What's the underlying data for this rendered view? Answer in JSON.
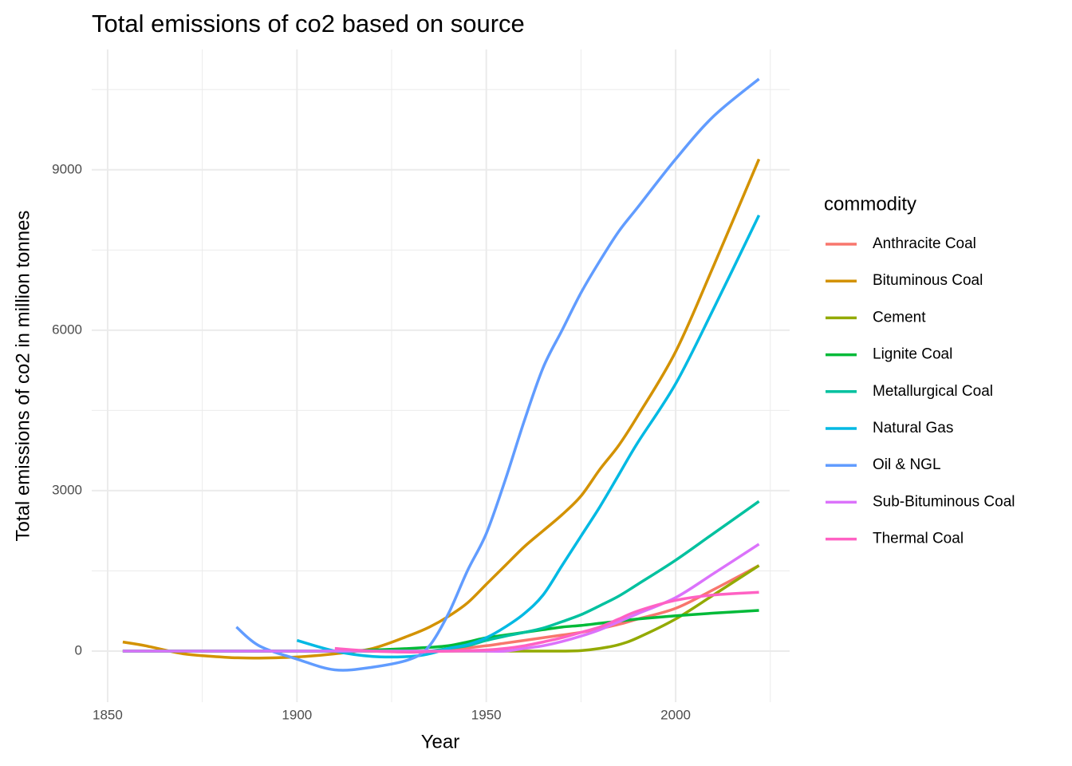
{
  "chart_data": {
    "type": "line",
    "title": "Total emissions of co2 based on source",
    "x_label": "Year",
    "y_label": "Total emissions of co2 in million tonnes",
    "legend_title": "commodity",
    "legend_position": "right",
    "grid": true,
    "x": [
      1854,
      1860,
      1870,
      1880,
      1884,
      1890,
      1900,
      1910,
      1920,
      1930,
      1935,
      1940,
      1945,
      1950,
      1955,
      1960,
      1965,
      1970,
      1975,
      1980,
      1985,
      1990,
      2000,
      2010,
      2022
    ],
    "xlim": [
      1845.8,
      2030.1
    ],
    "xticks": [
      1850,
      1900,
      1950,
      2000
    ],
    "x_minor_ticks": [
      1875,
      1925,
      1975,
      2025
    ],
    "ylim": [
      -955,
      11250
    ],
    "yticks": [
      0,
      3000,
      6000,
      9000
    ],
    "y_minor_ticks": [
      1500,
      4500,
      7500,
      10500
    ],
    "series": [
      {
        "name": "Anthracite Coal",
        "color": "#F8766D",
        "values": [
          0,
          0,
          0,
          0,
          0,
          0,
          0,
          0,
          0,
          0,
          0,
          30,
          60,
          100,
          150,
          200,
          250,
          300,
          350,
          420,
          500,
          600,
          800,
          1150,
          1600
        ]
      },
      {
        "name": "Bituminous Coal",
        "color": "#D39200",
        "values": [
          170,
          100,
          -50,
          -110,
          -125,
          -130,
          -110,
          -50,
          50,
          300,
          450,
          650,
          900,
          1250,
          1600,
          1950,
          2250,
          2550,
          2900,
          3400,
          3850,
          4400,
          5600,
          7200,
          9200
        ]
      },
      {
        "name": "Cement",
        "color": "#93AA00",
        "values": [
          0,
          0,
          0,
          0,
          0,
          0,
          0,
          0,
          0,
          0,
          0,
          0,
          0,
          0,
          0,
          0,
          0,
          0,
          10,
          50,
          120,
          250,
          600,
          1050,
          1600
        ]
      },
      {
        "name": "Lignite Coal",
        "color": "#00BA38",
        "values": [
          0,
          0,
          0,
          0,
          0,
          0,
          0,
          0,
          20,
          50,
          70,
          100,
          170,
          250,
          300,
          350,
          400,
          450,
          480,
          520,
          560,
          600,
          660,
          710,
          760
        ]
      },
      {
        "name": "Metallurgical Coal",
        "color": "#00C19F",
        "values": [
          0,
          0,
          0,
          0,
          0,
          0,
          0,
          0,
          0,
          0,
          0,
          50,
          100,
          200,
          280,
          350,
          430,
          550,
          680,
          850,
          1030,
          1250,
          1700,
          2200,
          2800
        ]
      },
      {
        "name": "Natural Gas",
        "color": "#00B9E3",
        "values": [
          null,
          null,
          null,
          null,
          null,
          null,
          200,
          0,
          -100,
          -100,
          -50,
          50,
          120,
          250,
          450,
          700,
          1050,
          1600,
          2150,
          2700,
          3300,
          3900,
          5000,
          6400,
          8150
        ]
      },
      {
        "name": "Oil & NGL",
        "color": "#619CFF",
        "values": [
          null,
          null,
          null,
          null,
          450,
          100,
          -150,
          -350,
          -300,
          -150,
          100,
          700,
          1500,
          2200,
          3200,
          4300,
          5300,
          6000,
          6700,
          7300,
          7850,
          8300,
          9200,
          10000,
          10700
        ]
      },
      {
        "name": "Sub-Bituminous Coal",
        "color": "#DB72FB",
        "values": [
          0,
          0,
          0,
          0,
          0,
          0,
          0,
          0,
          0,
          0,
          0,
          0,
          0,
          0,
          0,
          50,
          100,
          180,
          280,
          400,
          550,
          700,
          1000,
          1450,
          2000
        ]
      },
      {
        "name": "Thermal Coal",
        "color": "#FF61C3",
        "values": [
          null,
          null,
          null,
          null,
          null,
          null,
          null,
          50,
          0,
          -20,
          -10,
          0,
          10,
          20,
          50,
          100,
          170,
          250,
          350,
          450,
          600,
          750,
          950,
          1050,
          1100
        ]
      }
    ]
  }
}
